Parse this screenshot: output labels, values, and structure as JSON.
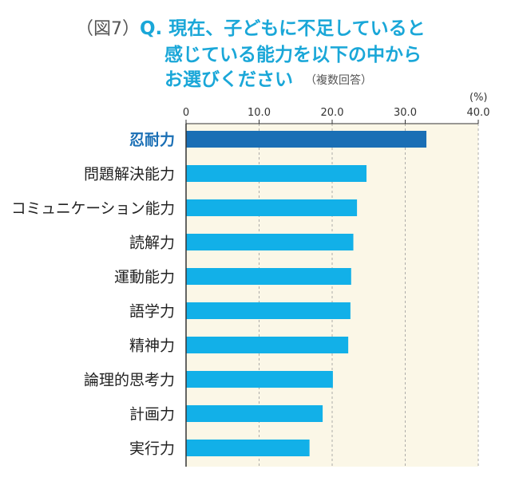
{
  "header": {
    "fig_label": "（図7）",
    "title_lines": [
      "Q. 現在、子どもに不足していると",
      "感じている能力を以下の中から",
      "お選びください"
    ],
    "note": "（複数回答）"
  },
  "colors": {
    "highlight_bar": "#1a6fb5",
    "bar": "#12b0e8",
    "plot_bg": "#fbf7e7",
    "title_text": "#1aa7d8",
    "highlight_label": "#1a6fb5"
  },
  "chart_data": {
    "type": "bar",
    "orientation": "horizontal",
    "unit_label": "(%)",
    "xlim": [
      0,
      40
    ],
    "ticks": [
      "0",
      "10.0",
      "20.0",
      "30.0",
      "40.0"
    ],
    "grid": true,
    "categories": [
      "忍耐力",
      "問題解決能力",
      "コミュニケーション能力",
      "読解力",
      "運動能力",
      "語学力",
      "精神力",
      "論理的思考力",
      "計画力",
      "実行力"
    ],
    "values": [
      32.9,
      24.7,
      23.4,
      22.9,
      22.6,
      22.5,
      22.2,
      20.1,
      18.7,
      16.9
    ],
    "highlight_index": 0
  }
}
